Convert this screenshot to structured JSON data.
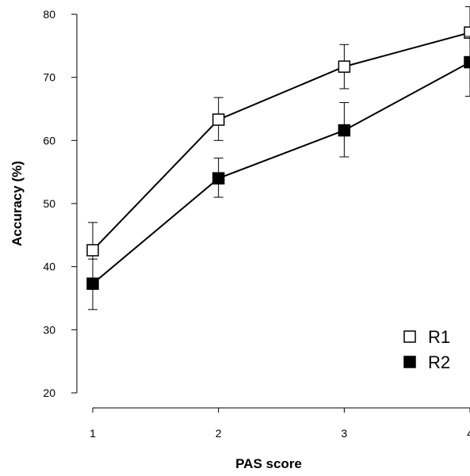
{
  "chart_data": {
    "type": "line",
    "x": [
      1,
      2,
      3,
      4
    ],
    "xlabel": "PAS score",
    "ylabel": "Accuracy (%)",
    "xlim": [
      1,
      4
    ],
    "ylim": [
      20,
      80
    ],
    "x_ticks": [
      "1",
      "2",
      "3",
      "4"
    ],
    "y_ticks": [
      "20",
      "30",
      "40",
      "50",
      "60",
      "70",
      "80"
    ],
    "grid": false,
    "legend_position": "bottom-right",
    "series": [
      {
        "name": "R1",
        "marker": "open-square",
        "values": [
          42.6,
          63.3,
          71.7,
          77.1
        ],
        "err_low": [
          38.2,
          60.0,
          68.2,
          73.0
        ],
        "err_high": [
          47.0,
          66.8,
          75.2,
          81.2
        ]
      },
      {
        "name": "R2",
        "marker": "filled-square",
        "values": [
          37.3,
          54.0,
          61.6,
          72.4
        ],
        "err_low": [
          33.2,
          51.0,
          57.4,
          67.0
        ],
        "err_high": [
          41.2,
          57.2,
          66.0,
          76.5
        ]
      }
    ],
    "colors": {
      "line": "#000000",
      "filled_marker": "#000000",
      "open_marker_fill": "#ffffff"
    }
  }
}
